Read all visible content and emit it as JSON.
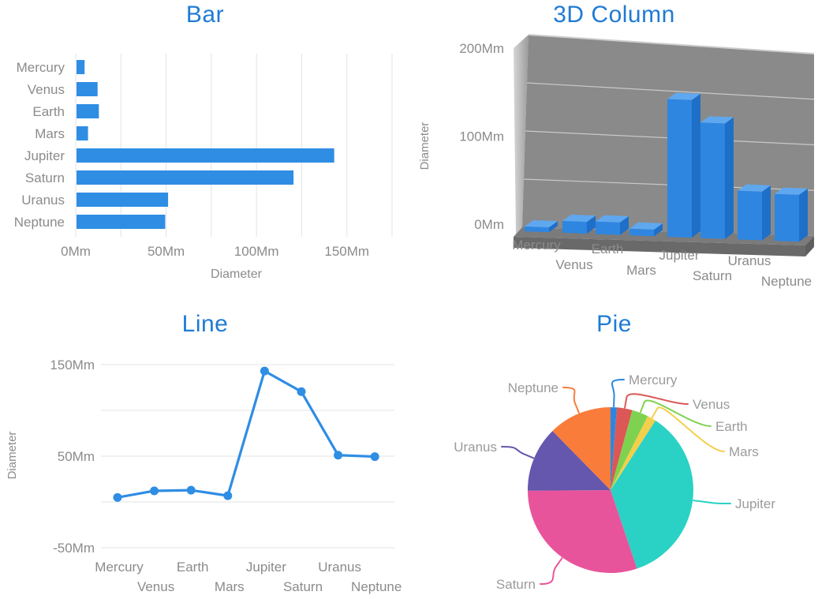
{
  "theme": {
    "title_color": "#1f7bd4",
    "label_color": "#8b8b8b",
    "pie_label_color": "#9b9b9b",
    "grid_color": "#e3e3e3",
    "series_blue": "#2f8de4"
  },
  "chart_data": [
    {
      "type": "bar",
      "title": "Bar",
      "categories": [
        "Mercury",
        "Venus",
        "Earth",
        "Mars",
        "Jupiter",
        "Saturn",
        "Uranus",
        "Neptune"
      ],
      "values": [
        4.9,
        12.1,
        12.8,
        6.8,
        143,
        120.5,
        51.1,
        49.5
      ],
      "unit": "Mm",
      "xlabel": "Diameter",
      "x_ticks": [
        {
          "label": "0Mm",
          "value": 0
        },
        {
          "label": "50Mm",
          "value": 50
        },
        {
          "label": "100Mm",
          "value": 100
        },
        {
          "label": "150Mm",
          "value": 150
        }
      ],
      "xlim": [
        0,
        175
      ],
      "grid_step": 25,
      "grid": true,
      "color": "#2f8de4"
    },
    {
      "type": "3d-column",
      "title": "3D Column",
      "categories": [
        "Mercury",
        "Venus",
        "Earth",
        "Mars",
        "Jupiter",
        "Saturn",
        "Uranus",
        "Neptune"
      ],
      "values": [
        4.9,
        12.1,
        12.8,
        6.8,
        143,
        120.5,
        51.1,
        49.5
      ],
      "unit": "Mm",
      "ylabel": "Diameter",
      "y_ticks": [
        {
          "label": "0Mm",
          "value": 0
        },
        {
          "label": "100Mm",
          "value": 100
        },
        {
          "label": "200Mm",
          "value": 200
        }
      ],
      "ylim": [
        0,
        200
      ],
      "grid_step": 50,
      "colors": {
        "front": "#2e86e0",
        "top": "#5fa8f0",
        "side": "#1e6fc8",
        "wall": "#8a8a8a",
        "wall_grid": "#c9c9c9",
        "wall_edge": "#d9d9d9",
        "bevel_light": "#d6d6d6",
        "bevel_dark": "#9b9b9b",
        "floor_top": "#7b7b7b",
        "floor_front": "#696969",
        "floor_side": "#5e5e5e"
      }
    },
    {
      "type": "line",
      "title": "Line",
      "categories": [
        "Mercury",
        "Venus",
        "Earth",
        "Mars",
        "Jupiter",
        "Saturn",
        "Uranus",
        "Neptune"
      ],
      "values": [
        4.9,
        12.1,
        12.8,
        6.8,
        143,
        120.5,
        51.1,
        49.5
      ],
      "unit": "Mm",
      "ylabel": "Diameter",
      "y_ticks": [
        {
          "label": "150Mm",
          "value": 150
        },
        {
          "label": "50Mm",
          "value": 50
        },
        {
          "label": "-50Mm",
          "value": -50
        }
      ],
      "grid_values": [
        150,
        100,
        50,
        0,
        -50
      ],
      "ylim": [
        -50,
        150
      ],
      "grid": true,
      "color": "#2f8de4"
    },
    {
      "type": "pie",
      "title": "Pie",
      "categories": [
        "Mercury",
        "Venus",
        "Earth",
        "Mars",
        "Jupiter",
        "Saturn",
        "Uranus",
        "Neptune"
      ],
      "values": [
        4.9,
        12.1,
        12.8,
        6.8,
        143,
        120.5,
        51.1,
        49.5
      ],
      "unit": "Mm",
      "slice_colors": [
        "#2b86e2",
        "#db5856",
        "#7fd24f",
        "#f3cf4c",
        "#2ad2c5",
        "#e8549b",
        "#6457ad",
        "#f97c3b"
      ],
      "legend_position": "labels-with-leader-lines"
    }
  ]
}
